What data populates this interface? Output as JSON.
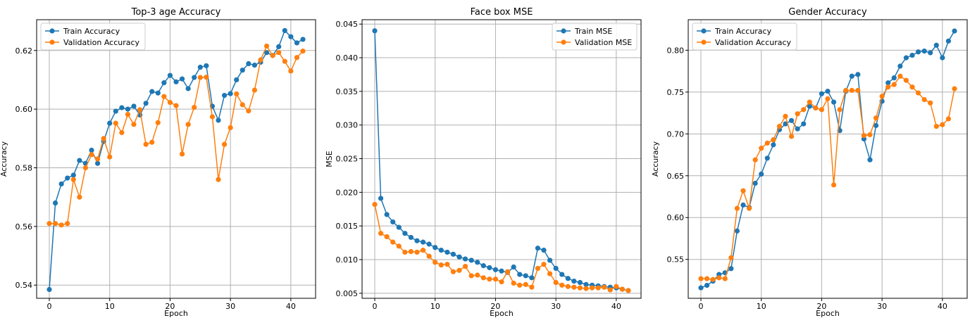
{
  "chart_data": [
    {
      "type": "line",
      "title": "Top-3 age Accuracy",
      "xlabel": "Epoch",
      "ylabel": "Accuracy",
      "xlim": [
        -2.1,
        44.1
      ],
      "ylim": [
        0.5355,
        0.6305
      ],
      "xticks": [
        0,
        10,
        20,
        30,
        40
      ],
      "yticks": [
        0.54,
        0.56,
        0.58,
        0.6,
        0.62
      ],
      "ytick_labels": [
        "0.54",
        "0.56",
        "0.58",
        "0.60",
        "0.62"
      ],
      "grid": true,
      "legend_position": "upper left",
      "x": [
        0,
        1,
        2,
        3,
        4,
        5,
        6,
        7,
        8,
        9,
        10,
        11,
        12,
        13,
        14,
        15,
        16,
        17,
        18,
        19,
        20,
        21,
        22,
        23,
        24,
        25,
        26,
        27,
        28,
        29,
        30,
        31,
        32,
        33,
        34,
        35,
        36,
        37,
        38,
        39,
        40,
        41,
        42
      ],
      "series": [
        {
          "name": "Train Accuracy",
          "color": "#1f77b4",
          "values": [
            0.5385,
            0.568,
            0.5745,
            0.5765,
            0.5775,
            0.5825,
            0.5815,
            0.586,
            0.5815,
            0.589,
            0.5952,
            0.5993,
            0.6005,
            0.6,
            0.601,
            0.598,
            0.602,
            0.606,
            0.6055,
            0.609,
            0.6115,
            0.6093,
            0.6103,
            0.607,
            0.6108,
            0.6143,
            0.6148,
            0.601,
            0.5962,
            0.6047,
            0.6053,
            0.61,
            0.6133,
            0.6155,
            0.615,
            0.616,
            0.6193,
            0.6183,
            0.6213,
            0.6268,
            0.6247,
            0.6226,
            0.6238
          ]
        },
        {
          "name": "Validation Accuracy",
          "color": "#ff7f0e",
          "values": [
            0.561,
            0.561,
            0.5605,
            0.561,
            0.576,
            0.57,
            0.58,
            0.5845,
            0.583,
            0.59,
            0.5837,
            0.5952,
            0.592,
            0.5982,
            0.5948,
            0.5998,
            0.588,
            0.5887,
            0.5954,
            0.6043,
            0.6023,
            0.6012,
            0.5847,
            0.5948,
            0.6006,
            0.6108,
            0.6109,
            0.5974,
            0.576,
            0.588,
            0.5937,
            0.6052,
            0.6015,
            0.5994,
            0.6065,
            0.6168,
            0.6215,
            0.6183,
            0.6193,
            0.6163,
            0.613,
            0.6176,
            0.6198
          ]
        }
      ]
    },
    {
      "type": "line",
      "title": "Face box MSE",
      "xlabel": "Epoch",
      "ylabel": "MSE",
      "xlim": [
        -2.1,
        44.1
      ],
      "ylim": [
        0.00425,
        0.04565
      ],
      "xticks": [
        0,
        10,
        20,
        30,
        40
      ],
      "yticks": [
        0.005,
        0.01,
        0.015,
        0.02,
        0.025,
        0.03,
        0.035,
        0.04,
        0.045
      ],
      "ytick_labels": [
        "0.005",
        "0.010",
        "0.015",
        "0.020",
        "0.025",
        "0.030",
        "0.035",
        "0.040",
        "0.045"
      ],
      "grid": true,
      "legend_position": "upper right",
      "x": [
        0,
        1,
        2,
        3,
        4,
        5,
        6,
        7,
        8,
        9,
        10,
        11,
        12,
        13,
        14,
        15,
        16,
        17,
        18,
        19,
        20,
        21,
        22,
        23,
        24,
        25,
        26,
        27,
        28,
        29,
        30,
        31,
        32,
        33,
        34,
        35,
        36,
        37,
        38,
        39,
        40,
        41,
        42
      ],
      "series": [
        {
          "name": "Train MSE",
          "color": "#1f77b4",
          "values": [
            0.044,
            0.0191,
            0.0167,
            0.0156,
            0.0148,
            0.0139,
            0.0133,
            0.0128,
            0.0126,
            0.0123,
            0.0118,
            0.0114,
            0.0111,
            0.0108,
            0.0104,
            0.0101,
            0.0099,
            0.0096,
            0.0091,
            0.0088,
            0.0085,
            0.0083,
            0.0081,
            0.0089,
            0.0078,
            0.0076,
            0.0073,
            0.0117,
            0.0114,
            0.0099,
            0.0087,
            0.0078,
            0.0072,
            0.0068,
            0.0066,
            0.0063,
            0.0062,
            0.0061,
            0.006,
            0.0059,
            0.0058,
            0.0056,
            0.0054
          ]
        },
        {
          "name": "Validation MSE",
          "color": "#ff7f0e",
          "values": [
            0.0182,
            0.0139,
            0.0134,
            0.0126,
            0.012,
            0.0111,
            0.0112,
            0.0111,
            0.0114,
            0.0105,
            0.0096,
            0.0092,
            0.0093,
            0.0082,
            0.0084,
            0.009,
            0.0076,
            0.0077,
            0.0073,
            0.0071,
            0.0071,
            0.0067,
            0.0082,
            0.0065,
            0.0062,
            0.0063,
            0.0059,
            0.0087,
            0.0093,
            0.0079,
            0.0066,
            0.0062,
            0.006,
            0.0059,
            0.0058,
            0.0057,
            0.0058,
            0.0058,
            0.0059,
            0.0055,
            0.006,
            0.0056,
            0.0054
          ]
        }
      ]
    },
    {
      "type": "line",
      "title": "Gender Accuracy",
      "xlabel": "Epoch",
      "ylabel": "Accuracy",
      "xlim": [
        -2.1,
        44.1
      ],
      "ylim": [
        0.5035,
        0.8365
      ],
      "xticks": [
        0,
        10,
        20,
        30,
        40
      ],
      "yticks": [
        0.55,
        0.6,
        0.65,
        0.7,
        0.75,
        0.8
      ],
      "ytick_labels": [
        "0.55",
        "0.60",
        "0.65",
        "0.70",
        "0.75",
        "0.80"
      ],
      "grid": true,
      "legend_position": "upper left",
      "x": [
        0,
        1,
        2,
        3,
        4,
        5,
        6,
        7,
        8,
        9,
        10,
        11,
        12,
        13,
        14,
        15,
        16,
        17,
        18,
        19,
        20,
        21,
        22,
        23,
        24,
        25,
        26,
        27,
        28,
        29,
        30,
        31,
        32,
        33,
        34,
        35,
        36,
        37,
        38,
        39,
        40,
        41,
        42
      ],
      "series": [
        {
          "name": "Train Accuracy",
          "color": "#1f77b4",
          "values": [
            0.516,
            0.519,
            0.524,
            0.532,
            0.534,
            0.539,
            0.584,
            0.615,
            0.612,
            0.641,
            0.652,
            0.671,
            0.687,
            0.705,
            0.712,
            0.716,
            0.706,
            0.712,
            0.733,
            0.731,
            0.748,
            0.751,
            0.738,
            0.704,
            0.751,
            0.769,
            0.771,
            0.694,
            0.669,
            0.71,
            0.739,
            0.761,
            0.767,
            0.781,
            0.791,
            0.794,
            0.798,
            0.799,
            0.797,
            0.806,
            0.791,
            0.811,
            0.823
          ]
        },
        {
          "name": "Validation Accuracy",
          "color": "#ff7f0e",
          "values": [
            0.527,
            0.527,
            0.526,
            0.528,
            0.527,
            0.552,
            0.611,
            0.632,
            0.611,
            0.669,
            0.683,
            0.689,
            0.693,
            0.709,
            0.721,
            0.697,
            0.724,
            0.729,
            0.738,
            0.731,
            0.729,
            0.742,
            0.639,
            0.729,
            0.752,
            0.752,
            0.752,
            0.698,
            0.699,
            0.719,
            0.745,
            0.756,
            0.759,
            0.769,
            0.764,
            0.756,
            0.749,
            0.741,
            0.737,
            0.709,
            0.711,
            0.718,
            0.754
          ]
        }
      ]
    }
  ]
}
